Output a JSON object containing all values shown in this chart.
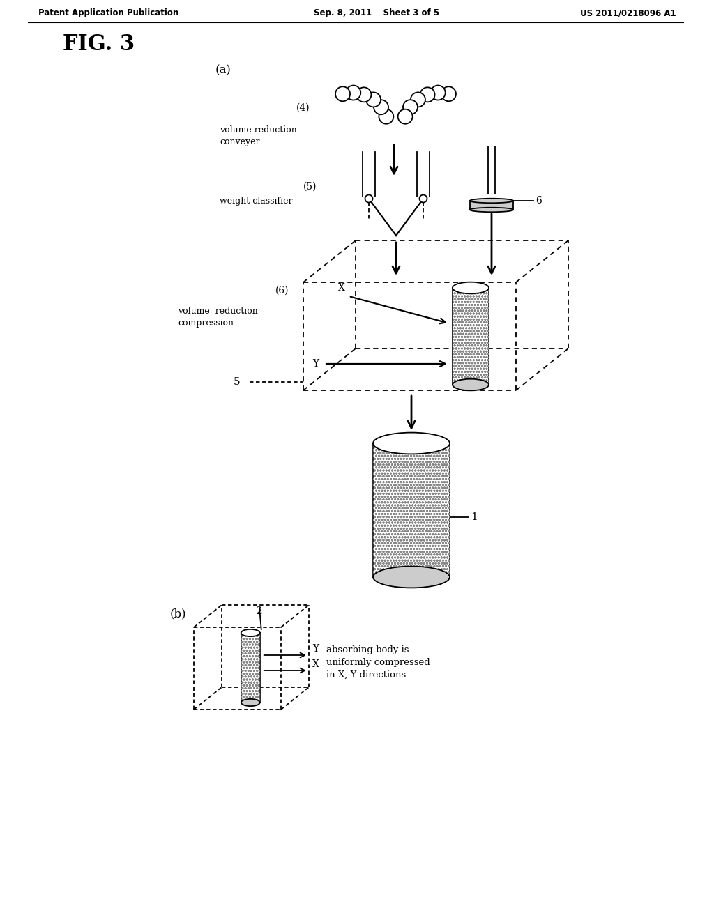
{
  "title": "FIG. 3",
  "header_left": "Patent Application Publication",
  "header_center": "Sep. 8, 2011    Sheet 3 of 5",
  "header_right": "US 2011/0218096 A1",
  "bg_color": "#ffffff",
  "line_color": "#000000",
  "label_a": "(a)",
  "label_b": "(b)",
  "label_4": "(4)",
  "label_5": "(5)",
  "label_6": "(6)",
  "label_5b": "5",
  "label_6b": "6",
  "label_1": "1",
  "label_2": "2",
  "text_vol_red_conv": "volume reduction\nconveyer",
  "text_weight": "weight classifier",
  "text_vol_red_comp": "volume  reduction\ncompression",
  "text_absorbing": "absorbing body is\nuniformly compressed\nin X, Y directions",
  "text_X": "X",
  "text_Y": "Y"
}
